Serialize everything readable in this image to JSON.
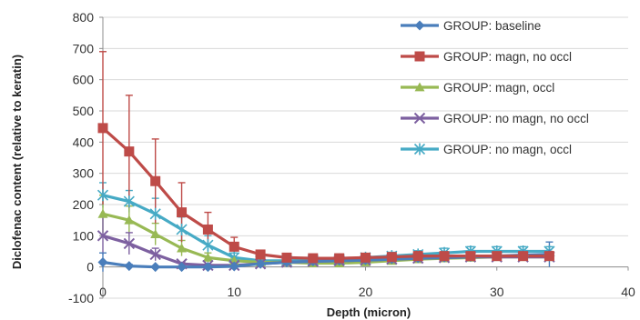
{
  "chart_data": {
    "type": "line",
    "xlabel": "Depth (micron)",
    "ylabel": "Diclofenac content (relative to keratin)",
    "xlim": [
      0,
      40
    ],
    "ylim": [
      -100,
      800
    ],
    "x_ticks": [
      0,
      10,
      20,
      30,
      40
    ],
    "y_ticks": [
      -100,
      0,
      100,
      200,
      300,
      400,
      500,
      600,
      700,
      800
    ],
    "grid": "horizontal",
    "legend_position": "top-right",
    "x": [
      0,
      2,
      4,
      6,
      8,
      10,
      12,
      14,
      16,
      18,
      20,
      22,
      24,
      26,
      28,
      30,
      32,
      34
    ],
    "series": [
      {
        "name": "GROUP: baseline",
        "color": "#4a7ebb",
        "marker": "diamond",
        "values": [
          15,
          3,
          0,
          0,
          0,
          2,
          10,
          15,
          18,
          20,
          22,
          25,
          28,
          30,
          32,
          35,
          38,
          40
        ],
        "errors": [
          30,
          5,
          3,
          2,
          2,
          3,
          5,
          5,
          5,
          5,
          5,
          5,
          6,
          6,
          6,
          6,
          8,
          40
        ]
      },
      {
        "name": "GROUP: magn, no occl",
        "color": "#be4b48",
        "marker": "square",
        "values": [
          445,
          370,
          275,
          175,
          120,
          65,
          40,
          30,
          28,
          28,
          30,
          32,
          35,
          35,
          35,
          35,
          35,
          35
        ],
        "errors": [
          245,
          180,
          135,
          95,
          55,
          30,
          12,
          8,
          6,
          6,
          8,
          12,
          15,
          15,
          15,
          15,
          15,
          15
        ]
      },
      {
        "name": "GROUP: magn, occl",
        "color": "#98b954",
        "marker": "triangle",
        "values": [
          170,
          150,
          105,
          60,
          30,
          20,
          15,
          15,
          12,
          12,
          15,
          20,
          25,
          28,
          30,
          32,
          32,
          32
        ],
        "errors": [
          60,
          45,
          35,
          25,
          15,
          8,
          5,
          5,
          5,
          5,
          5,
          6,
          8,
          8,
          8,
          8,
          8,
          8
        ]
      },
      {
        "name": "GROUP: no magn, no occl",
        "color": "#7d60a0",
        "marker": "x",
        "values": [
          100,
          75,
          40,
          10,
          5,
          5,
          10,
          15,
          18,
          20,
          22,
          25,
          28,
          30,
          32,
          32,
          32,
          32
        ],
        "errors": [
          60,
          35,
          20,
          5,
          3,
          3,
          3,
          3,
          3,
          3,
          3,
          5,
          5,
          5,
          5,
          5,
          5,
          5
        ]
      },
      {
        "name": "GROUP: no magn, occl",
        "color": "#46aac5",
        "marker": "star",
        "values": [
          230,
          210,
          170,
          120,
          70,
          30,
          20,
          20,
          22,
          25,
          30,
          35,
          40,
          45,
          50,
          50,
          50,
          50
        ],
        "errors": [
          40,
          35,
          50,
          40,
          30,
          15,
          8,
          8,
          8,
          8,
          10,
          12,
          12,
          15,
          15,
          15,
          15,
          15
        ]
      }
    ]
  }
}
